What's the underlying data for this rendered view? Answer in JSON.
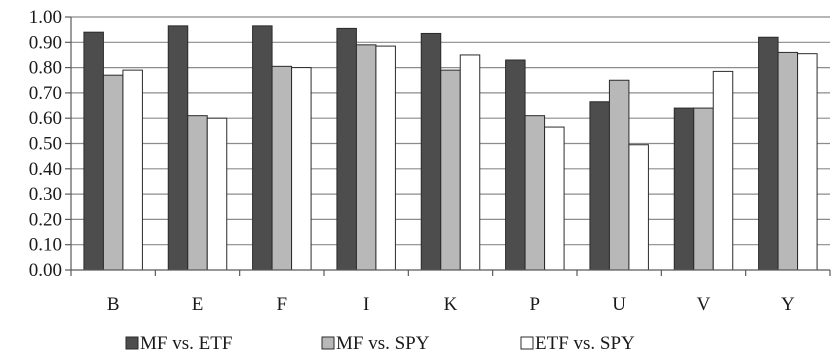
{
  "chart_data": {
    "type": "bar",
    "title": "",
    "xlabel": "",
    "ylabel": "",
    "categories": [
      "B",
      "E",
      "F",
      "I",
      "K",
      "P",
      "U",
      "V",
      "Y"
    ],
    "ylim": [
      0,
      1
    ],
    "yticks": [
      "0.00",
      "0.10",
      "0.20",
      "0.30",
      "0.40",
      "0.50",
      "0.60",
      "0.70",
      "0.80",
      "0.90",
      "1.00"
    ],
    "grid": "horizontal",
    "legend_position": "bottom",
    "series": [
      {
        "name": "MF vs. ETF",
        "color": "#4d4d4d",
        "values": [
          0.94,
          0.965,
          0.965,
          0.955,
          0.935,
          0.83,
          0.665,
          0.64,
          0.92
        ]
      },
      {
        "name": "MF vs. SPY",
        "color": "#b8b8b8",
        "values": [
          0.77,
          0.61,
          0.805,
          0.89,
          0.79,
          0.61,
          0.75,
          0.64,
          0.86
        ]
      },
      {
        "name": "ETF vs. SPY",
        "color": "#ffffff",
        "values": [
          0.79,
          0.6,
          0.8,
          0.885,
          0.85,
          0.565,
          0.495,
          0.785,
          0.855
        ]
      }
    ]
  }
}
